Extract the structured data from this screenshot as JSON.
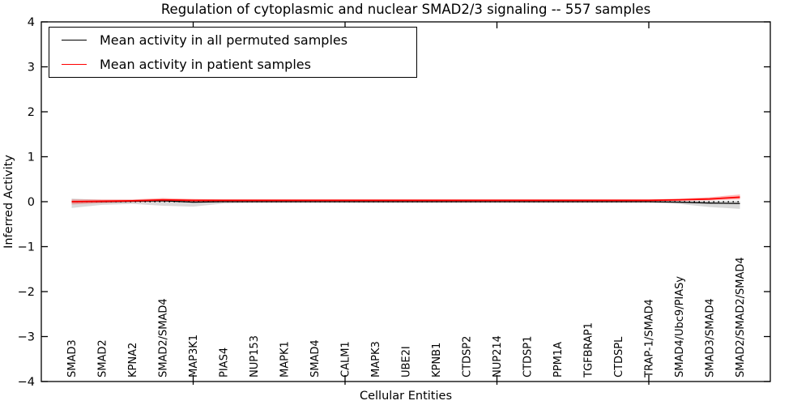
{
  "figure": {
    "background": "#ffffff"
  },
  "chart_data": {
    "type": "line",
    "title": "Regulation of cytoplasmic and nuclear SMAD2/3 signaling -- 557 samples",
    "xlabel": "Cellular Entities",
    "ylabel": "Inferred Activity",
    "xlim": [
      0,
      24
    ],
    "ylim": [
      -4,
      4
    ],
    "grid": false,
    "legend_position": "upper left",
    "yticks": [
      {
        "value": -4,
        "label": "−4"
      },
      {
        "value": -3,
        "label": "−3"
      },
      {
        "value": -2,
        "label": "−2"
      },
      {
        "value": -1,
        "label": "−1"
      },
      {
        "value": 0,
        "label": "0"
      },
      {
        "value": 1,
        "label": "1"
      },
      {
        "value": 2,
        "label": "2"
      },
      {
        "value": 3,
        "label": "3"
      },
      {
        "value": 4,
        "label": "4"
      }
    ],
    "xtick_values": [
      5,
      10,
      15,
      20
    ],
    "categories": [
      "SMAD3",
      "SMAD2",
      "KPNA2",
      "SMAD2/SMAD4",
      "MAP3K1",
      "PIAS4",
      "NUP153",
      "MAPK1",
      "SMAD4",
      "CALM1",
      "MAPK3",
      "UBE2I",
      "KPNB1",
      "CTDSP2",
      "NUP214",
      "CTDSP1",
      "PPM1A",
      "TGFBRAP1",
      "CTDSPL",
      "TRAP-1/SMAD4",
      "SMAD4/Ubc9/PIASy",
      "SMAD3/SMAD4",
      "SMAD2/SMAD2/SMAD4"
    ],
    "x": [
      1,
      2,
      3,
      4,
      5,
      6,
      7,
      8,
      9,
      10,
      11,
      12,
      13,
      14,
      15,
      16,
      17,
      18,
      19,
      20,
      21,
      22,
      23
    ],
    "zero_line": {
      "y": 0,
      "color": "#000000",
      "style": "dotted"
    },
    "series": [
      {
        "name": "Mean activity in all permuted samples",
        "color": "#000000",
        "line_width": 1.3,
        "band_color": "rgba(0,0,0,0.15)",
        "values": [
          0,
          0,
          0.01,
          0.02,
          -0.01,
          0,
          0,
          0,
          0,
          0,
          0,
          0,
          0,
          0,
          0,
          0,
          0,
          0,
          0,
          0,
          -0.01,
          -0.03,
          -0.04
        ],
        "band_upper": [
          0.07,
          0.04,
          0.04,
          0.06,
          0.04,
          0.02,
          0.02,
          0.02,
          0.02,
          0.02,
          0.02,
          0.02,
          0.02,
          0.02,
          0.02,
          0.02,
          0.02,
          0.02,
          0.02,
          0.02,
          0.02,
          0.02,
          0.02
        ],
        "band_lower": [
          -0.14,
          -0.07,
          -0.05,
          -0.09,
          -0.11,
          -0.04,
          -0.03,
          -0.03,
          -0.03,
          -0.03,
          -0.03,
          -0.03,
          -0.03,
          -0.03,
          -0.03,
          -0.03,
          -0.03,
          -0.03,
          -0.03,
          -0.03,
          -0.05,
          -0.12,
          -0.16
        ]
      },
      {
        "name": "Mean activity in patient samples",
        "color": "#ff0000",
        "line_width": 1.8,
        "band_color": "rgba(255,0,0,0.28)",
        "values": [
          0,
          0.01,
          0.02,
          0.04,
          0.03,
          0.03,
          0.03,
          0.03,
          0.03,
          0.03,
          0.03,
          0.03,
          0.03,
          0.03,
          0.03,
          0.03,
          0.03,
          0.03,
          0.03,
          0.03,
          0.04,
          0.06,
          0.1
        ],
        "band_upper": [
          0.05,
          0.05,
          0.05,
          0.08,
          0.06,
          0.05,
          0.05,
          0.05,
          0.05,
          0.05,
          0.05,
          0.05,
          0.05,
          0.05,
          0.05,
          0.05,
          0.05,
          0.05,
          0.05,
          0.05,
          0.07,
          0.1,
          0.16
        ],
        "band_lower": [
          -0.06,
          -0.03,
          -0.01,
          0,
          -0.01,
          0.01,
          0.01,
          0.01,
          0.01,
          0.01,
          0.01,
          0.01,
          0.01,
          0.01,
          0.01,
          0.01,
          0.01,
          0.01,
          0.01,
          0.01,
          0.02,
          0.03,
          0.05
        ]
      }
    ]
  }
}
